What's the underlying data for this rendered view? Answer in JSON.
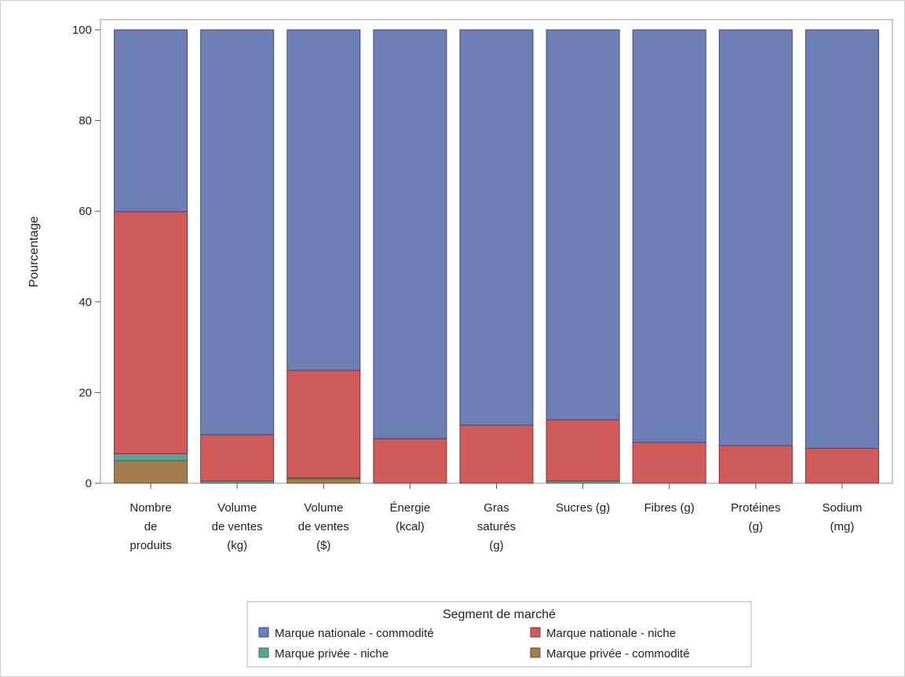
{
  "chart_data": {
    "type": "bar",
    "stacked": true,
    "title": "",
    "xlabel": "",
    "ylabel": "Pourcentage",
    "ylim": [
      0,
      100
    ],
    "yticks": [
      "0",
      "20",
      "40",
      "60",
      "80",
      "100"
    ],
    "grid": false,
    "categories": [
      [
        "Nombre",
        "de",
        "produits"
      ],
      [
        "Volume",
        "de ventes",
        "(kg)"
      ],
      [
        "Volume",
        "de ventes",
        "($)"
      ],
      [
        "Énergie",
        "(kcal)"
      ],
      [
        "Gras",
        "saturés",
        "(g)"
      ],
      [
        "Sucres (g)"
      ],
      [
        "Fibres (g)"
      ],
      [
        "Protéines",
        "(g)"
      ],
      [
        "Sodium",
        "(mg)"
      ]
    ],
    "series": [
      {
        "name": "Marque privée - commodité",
        "color": "#A47D4F",
        "edge": "#6b4e2a",
        "values": [
          5,
          0,
          1,
          0,
          0,
          0,
          0,
          0,
          0
        ]
      },
      {
        "name": "Marque privée - niche",
        "color": "#5AA39B",
        "edge": "#2f6e66",
        "values": [
          1.5,
          0.5,
          0.2,
          0,
          0,
          0.5,
          0,
          0,
          0
        ]
      },
      {
        "name": "Marque nationale - niche",
        "color": "#D05B5B",
        "edge": "#8e2c2c",
        "values": [
          53.4,
          10.2,
          23.7,
          9.8,
          12.8,
          13.5,
          9,
          8.3,
          7.7
        ]
      },
      {
        "name": "Marque nationale - commodité",
        "color": "#6D7FB5",
        "edge": "#3c4a82",
        "values": [
          40.1,
          89.3,
          75.1,
          90.2,
          87.2,
          86,
          91,
          91.7,
          92.3
        ]
      }
    ],
    "legend": {
      "title": "Segment de marché",
      "placement": "bottom",
      "items": [
        "Marque nationale - commodité",
        "Marque nationale - niche",
        "Marque privée - niche",
        "Marque privée - commodité"
      ]
    }
  }
}
